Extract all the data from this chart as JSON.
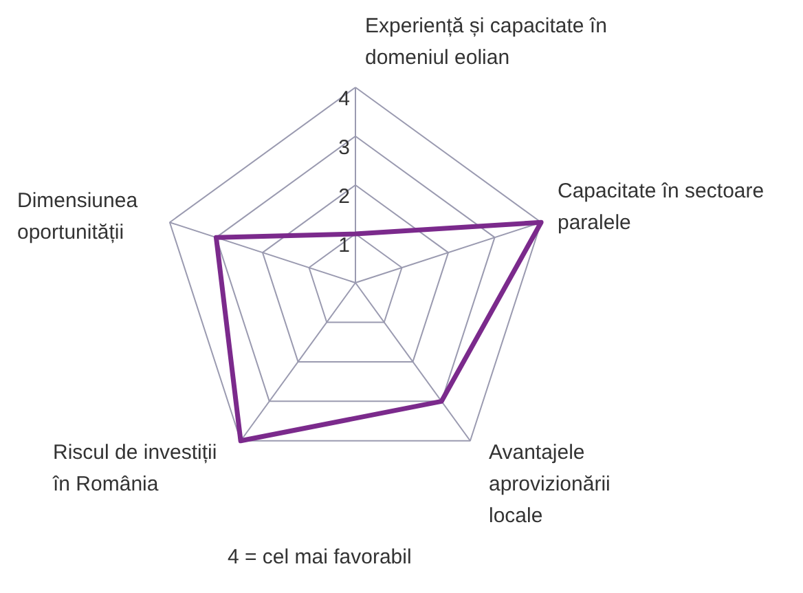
{
  "chart_data": {
    "type": "radar",
    "categories": [
      "Experiență și capacitate în\ndomeniul eolian",
      "Capacitate în sectoare\nparalele",
      "Avantajele\naprovizionării\nlocale",
      "Riscul de investiții\nîn România",
      "Dimensiunea\noportunității"
    ],
    "series": [
      {
        "color": "#7b2a8c",
        "values": [
          1,
          4,
          3,
          4,
          3
        ]
      }
    ],
    "ylim": [
      0,
      4
    ],
    "yticks": [
      1,
      2,
      3,
      4
    ],
    "annotations": [
      "4 =  cel mai favorabil"
    ]
  }
}
